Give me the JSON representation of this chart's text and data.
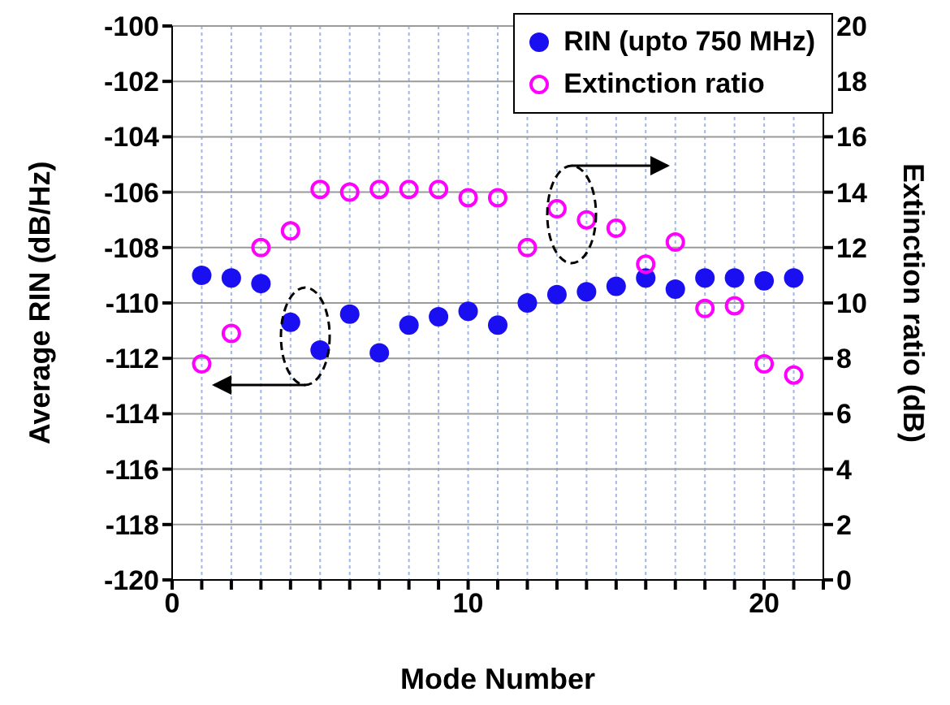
{
  "chart_data": {
    "type": "scatter",
    "xlabel": "Mode Number",
    "ylabel": "Average RIN (dB/Hz)",
    "y2label": "Extinction ratio (dB)",
    "x": [
      1,
      2,
      3,
      4,
      5,
      6,
      7,
      8,
      9,
      10,
      11,
      12,
      13,
      14,
      15,
      16,
      17,
      18,
      19,
      20,
      21
    ],
    "series": [
      {
        "name": "RIN (upto 750 MHz)",
        "color": "#1a0ff0",
        "values": [
          -109.0,
          -109.1,
          -109.3,
          -110.7,
          -111.7,
          -110.4,
          -111.8,
          -110.8,
          -110.5,
          -110.3,
          -110.8,
          -110.0,
          -109.7,
          -109.6,
          -109.4,
          -109.1,
          -109.5,
          -109.1,
          -109.1,
          -109.2,
          -109.1
        ]
      },
      {
        "name": "Extinction ratio",
        "color": "#ff00ff",
        "axis": "y2",
        "values": [
          7.8,
          8.9,
          12.0,
          12.6,
          14.1,
          14.0,
          14.1,
          14.1,
          14.1,
          13.8,
          13.8,
          12.0,
          13.4,
          13.0,
          12.7,
          11.4,
          12.2,
          9.8,
          9.9,
          7.8,
          7.4
        ]
      }
    ],
    "xlim": [
      0,
      22
    ],
    "xticks": [
      0,
      {
        "value": 1,
        "label": null
      },
      {
        "value": 2,
        "label": null
      },
      {
        "value": 3,
        "label": null
      },
      {
        "value": 4,
        "label": null
      },
      {
        "value": 5,
        "label": null
      },
      {
        "value": 6,
        "label": null
      },
      {
        "value": 7,
        "label": null
      },
      {
        "value": 8,
        "label": null
      },
      {
        "value": 9,
        "label": null
      },
      10,
      {
        "value": 11,
        "label": null
      },
      {
        "value": 12,
        "label": null
      },
      {
        "value": 13,
        "label": null
      },
      {
        "value": 14,
        "label": null
      },
      {
        "value": 15,
        "label": null
      },
      {
        "value": 16,
        "label": null
      },
      {
        "value": 17,
        "label": null
      },
      {
        "value": 18,
        "label": null
      },
      {
        "value": 19,
        "label": null
      },
      20,
      {
        "value": 21,
        "label": null
      },
      {
        "value": 22,
        "label": null
      }
    ],
    "ylim": [
      -120,
      -100
    ],
    "yticks": [
      -120,
      -118,
      -116,
      -114,
      -112,
      -110,
      -108,
      -106,
      -104,
      -102,
      -100
    ],
    "y2lim": [
      0,
      20
    ],
    "y2ticks": [
      0,
      2,
      4,
      6,
      8,
      10,
      12,
      14,
      16,
      18,
      20
    ],
    "grid": true,
    "legend": "top right",
    "marker": "circle"
  }
}
